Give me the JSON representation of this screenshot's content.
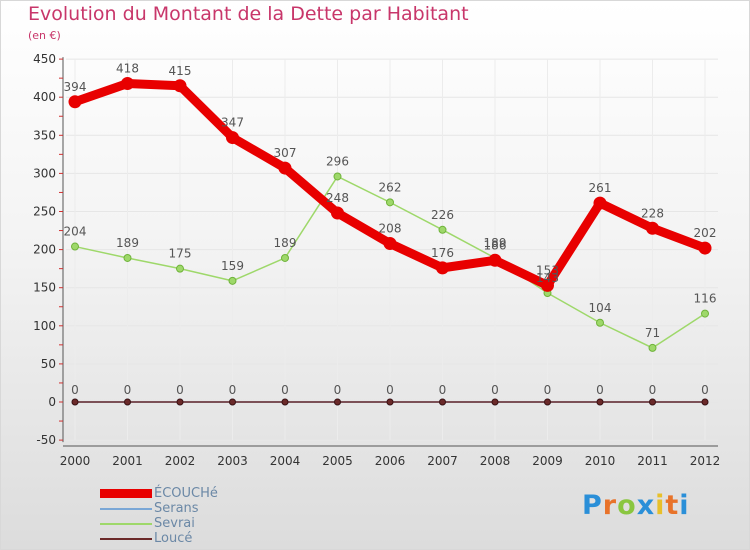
{
  "title": "Evolution du Montant de la Dette par Habitant",
  "unit": "(en €)",
  "logo": {
    "letters": [
      "P",
      "r",
      "o",
      "x",
      "i",
      "t",
      "i"
    ],
    "colors": [
      "#2a8fd8",
      "#e8732a",
      "#8ac640",
      "#2a8fd8",
      "#e8c02a",
      "#e8732a",
      "#2a8fd8"
    ]
  },
  "chart_data": {
    "type": "line",
    "title": "Evolution du Montant de la Dette par Habitant",
    "ylabel": "(en €)",
    "x": [
      "2000",
      "2001",
      "2002",
      "2003",
      "2004",
      "2005",
      "2006",
      "2007",
      "2008",
      "2009",
      "2010",
      "2011",
      "2012"
    ],
    "ylim": [
      -50,
      450
    ],
    "yticks": [
      -50,
      0,
      50,
      100,
      150,
      200,
      250,
      300,
      350,
      400,
      450
    ],
    "grid": true,
    "series": [
      {
        "name": "ÉCOUCHé",
        "color": "#e80000",
        "values": [
          394,
          418,
          415,
          347,
          307,
          248,
          208,
          176,
          186,
          153,
          261,
          228,
          202
        ]
      },
      {
        "name": "Serans",
        "color": "#7aa7d6",
        "values": [
          0,
          0,
          0,
          0,
          0,
          0,
          0,
          0,
          0,
          0,
          0,
          0,
          0
        ]
      },
      {
        "name": "Sevrai",
        "color": "#9ed86a",
        "values": [
          204,
          189,
          175,
          159,
          189,
          296,
          262,
          226,
          189,
          143,
          104,
          71,
          116
        ]
      },
      {
        "name": "Loucé",
        "color": "#6b2a2a",
        "values": [
          0,
          0,
          0,
          0,
          0,
          0,
          0,
          0,
          0,
          0,
          0,
          0,
          0
        ]
      }
    ]
  }
}
